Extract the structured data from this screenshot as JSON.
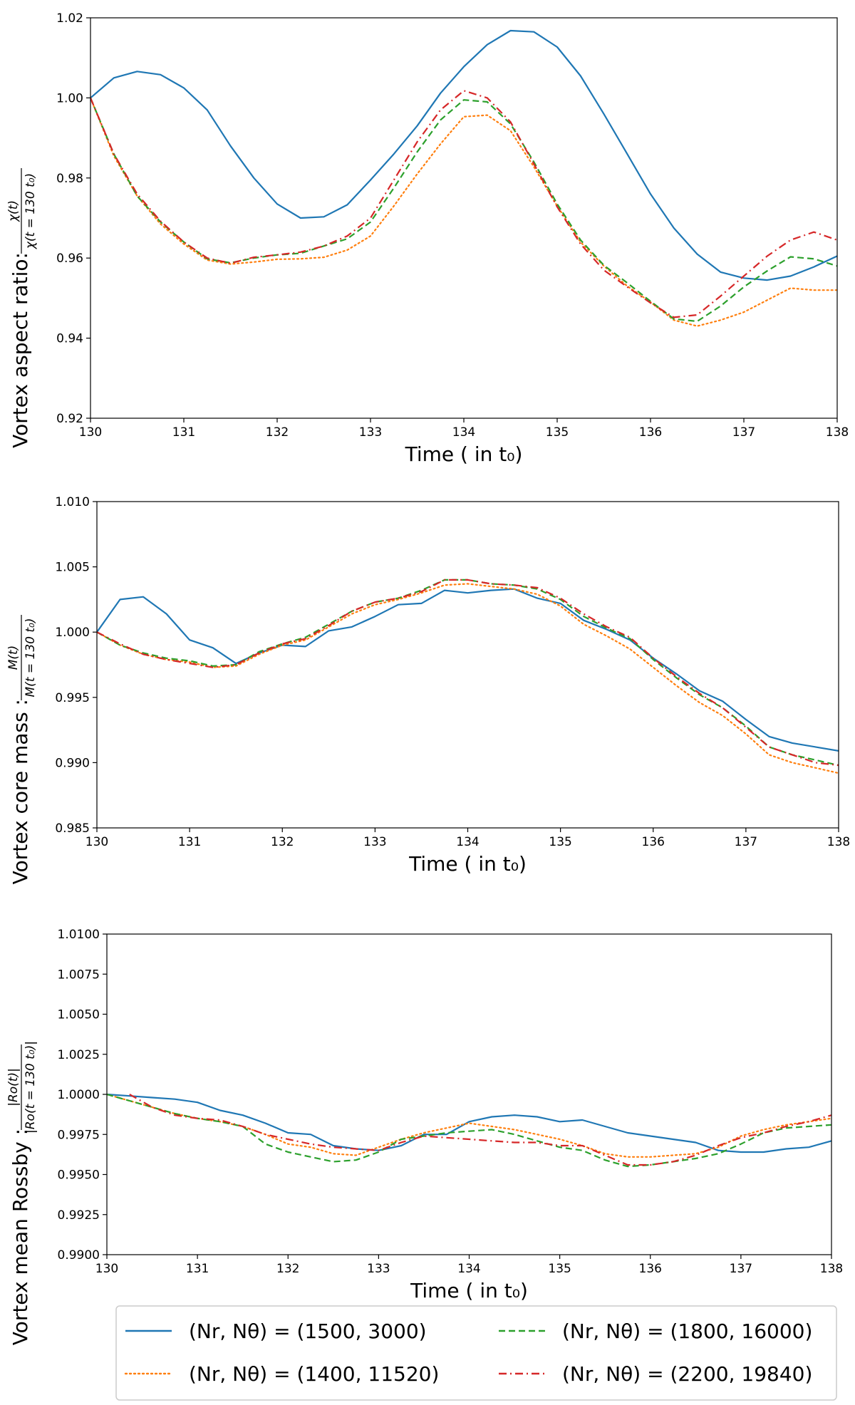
{
  "chart_data": [
    {
      "type": "line",
      "ylabel_prefix": "Vortex aspect ratio: ",
      "ylabel_numerator": "χ(t)",
      "ylabel_denominator": "χ(t = 130 t₀)",
      "xlabel": "Time ( in t₀)",
      "xlim": [
        130,
        138
      ],
      "ylim": [
        0.92,
        1.02
      ],
      "xticks": [
        "130",
        "131",
        "132",
        "133",
        "134",
        "135",
        "136",
        "137",
        "138"
      ],
      "yticks": [
        "0.92",
        "0.94",
        "0.96",
        "0.98",
        "1.00",
        "1.02"
      ],
      "x": [
        130,
        130.25,
        130.5,
        130.75,
        131,
        131.25,
        131.5,
        131.75,
        132,
        132.25,
        132.5,
        132.75,
        133,
        133.25,
        133.5,
        133.75,
        134,
        134.25,
        134.5,
        134.75,
        135,
        135.25,
        135.5,
        135.75,
        136,
        136.25,
        136.5,
        136.75,
        137,
        137.25,
        137.5,
        137.75,
        138
      ],
      "series": [
        {
          "name": "(Nr, Nθ) = (1500, 3000)",
          "values": [
            1.0,
            1.005,
            1.0066,
            1.0058,
            1.0025,
            0.997,
            0.988,
            0.98,
            0.9735,
            0.97,
            0.9703,
            0.9733,
            0.9795,
            0.986,
            0.993,
            1.0012,
            1.0078,
            1.0133,
            1.0168,
            1.0165,
            1.0127,
            1.0055,
            0.996,
            0.986,
            0.976,
            0.9675,
            0.961,
            0.9565,
            0.955,
            0.9545,
            0.9555,
            0.9578,
            0.9605
          ]
        },
        {
          "name": "(Nr, Nθ) = (1400, 11520)",
          "values": [
            1.0,
            0.9855,
            0.9755,
            0.9685,
            0.9635,
            0.9595,
            0.9585,
            0.959,
            0.9597,
            0.9598,
            0.9602,
            0.962,
            0.9655,
            0.973,
            0.981,
            0.9885,
            0.9953,
            0.9957,
            0.9918,
            0.9828,
            0.973,
            0.964,
            0.958,
            0.953,
            0.949,
            0.9445,
            0.943,
            0.9445,
            0.9465,
            0.9495,
            0.9525,
            0.952,
            0.952
          ]
        },
        {
          "name": "(Nr, Nθ) = (1800, 16000)",
          "values": [
            1.0,
            0.986,
            0.9755,
            0.969,
            0.964,
            0.9598,
            0.9588,
            0.96,
            0.9608,
            0.9612,
            0.963,
            0.9648,
            0.969,
            0.9775,
            0.9865,
            0.9945,
            0.9995,
            0.999,
            0.9935,
            0.984,
            0.9735,
            0.9645,
            0.9582,
            0.9538,
            0.9492,
            0.9448,
            0.9442,
            0.948,
            0.9528,
            0.9568,
            0.9603,
            0.9598,
            0.958
          ]
        },
        {
          "name": "(Nr, Nθ) = (2200, 19840)",
          "values": [
            1.0,
            0.986,
            0.976,
            0.9692,
            0.964,
            0.96,
            0.9587,
            0.9602,
            0.9608,
            0.9615,
            0.963,
            0.9655,
            0.97,
            0.9795,
            0.989,
            0.997,
            1.0018,
            1.0,
            0.994,
            0.9835,
            0.9728,
            0.9635,
            0.957,
            0.9528,
            0.9488,
            0.9452,
            0.9458,
            0.9505,
            0.9555,
            0.9605,
            0.9645,
            0.9665,
            0.9645
          ]
        }
      ]
    },
    {
      "type": "line",
      "ylabel_prefix": "Vortex core mass : ",
      "ylabel_numerator": "M(t)",
      "ylabel_denominator": "M(t = 130 t₀)",
      "xlabel": "Time ( in t₀)",
      "xlim": [
        130,
        138
      ],
      "ylim": [
        0.985,
        1.01
      ],
      "xticks": [
        "130",
        "131",
        "132",
        "133",
        "134",
        "135",
        "136",
        "137",
        "138"
      ],
      "yticks": [
        "0.985",
        "0.990",
        "0.995",
        "1.000",
        "1.005",
        "1.010"
      ],
      "x": [
        130,
        130.25,
        130.5,
        130.75,
        131,
        131.25,
        131.5,
        131.75,
        132,
        132.25,
        132.5,
        132.75,
        133,
        133.25,
        133.5,
        133.75,
        134,
        134.25,
        134.5,
        134.75,
        135,
        135.25,
        135.5,
        135.75,
        136,
        136.25,
        136.5,
        136.75,
        137,
        137.25,
        137.5,
        137.75,
        138
      ],
      "series": [
        {
          "name": "(Nr, Nθ) = (1500, 3000)",
          "values": [
            1.0,
            1.0025,
            1.0027,
            1.0014,
            0.9994,
            0.9988,
            0.9976,
            0.9984,
            0.999,
            0.9989,
            1.0001,
            1.0004,
            1.0012,
            1.0021,
            1.0022,
            1.0032,
            1.003,
            1.0032,
            1.0033,
            1.0026,
            1.0022,
            1.0009,
            1.0002,
            0.9994,
            0.998,
            0.9968,
            0.9955,
            0.9947,
            0.9933,
            0.992,
            0.9915,
            0.9912,
            0.9909
          ]
        },
        {
          "name": "(Nr, Nθ) = (1400, 11520)",
          "values": [
            1.0,
            0.999,
            0.9983,
            0.9979,
            0.9977,
            0.9973,
            0.9974,
            0.9983,
            0.999,
            0.9994,
            1.0004,
            1.0014,
            1.0021,
            1.0025,
            1.003,
            1.0036,
            1.0037,
            1.0035,
            1.0033,
            1.0029,
            1.002,
            1.0006,
            0.9997,
            0.9987,
            0.9973,
            0.9959,
            0.9946,
            0.9936,
            0.9922,
            0.9906,
            0.99,
            0.9896,
            0.9892
          ]
        },
        {
          "name": "(Nr, Nθ) = (1800, 16000)",
          "values": [
            1.0,
            0.999,
            0.9984,
            0.998,
            0.9978,
            0.9974,
            0.9975,
            0.9985,
            0.9991,
            0.9996,
            1.0006,
            1.0016,
            1.0023,
            1.0026,
            1.0032,
            1.004,
            1.004,
            1.0037,
            1.0036,
            1.0033,
            1.0025,
            1.0012,
            1.0003,
            0.9995,
            0.9979,
            0.9965,
            0.9952,
            0.9942,
            0.9928,
            0.9912,
            0.9906,
            0.9902,
            0.9898
          ]
        },
        {
          "name": "(Nr, Nθ) = (2200, 19840)",
          "values": [
            1.0,
            0.9991,
            0.9983,
            0.9979,
            0.9976,
            0.9973,
            0.9975,
            0.9984,
            0.9991,
            0.9995,
            1.0005,
            1.0016,
            1.0023,
            1.0026,
            1.0031,
            1.004,
            1.004,
            1.0037,
            1.0036,
            1.0034,
            1.0026,
            1.0014,
            1.0004,
            0.9996,
            0.998,
            0.9966,
            0.9953,
            0.9942,
            0.9927,
            0.9912,
            0.9906,
            0.99,
            0.9898
          ]
        }
      ]
    },
    {
      "type": "line",
      "ylabel_prefix": "Vortex mean Rossby : ",
      "ylabel_numerator": "|Ro(t)|",
      "ylabel_denominator": "|Ro(t = 130 t₀)|",
      "xlabel": "Time ( in t₀)",
      "xlim": [
        130,
        138
      ],
      "ylim": [
        0.99,
        1.01
      ],
      "xticks": [
        "130",
        "131",
        "132",
        "133",
        "134",
        "135",
        "136",
        "137",
        "138"
      ],
      "yticks": [
        "0.9900",
        "0.9925",
        "0.9950",
        "0.9975",
        "1.0000",
        "1.0025",
        "1.0050",
        "1.0075",
        "1.0100"
      ],
      "x": [
        130,
        130.25,
        130.5,
        130.75,
        131,
        131.25,
        131.5,
        131.75,
        132,
        132.25,
        132.5,
        132.75,
        133,
        133.25,
        133.5,
        133.75,
        134,
        134.25,
        134.5,
        134.75,
        135,
        135.25,
        135.5,
        135.75,
        136,
        136.25,
        136.5,
        136.75,
        137,
        137.25,
        137.5,
        137.75,
        138
      ],
      "series": [
        {
          "name": "(Nr, Nθ) = (1500, 3000)",
          "values": [
            1.0,
            0.9999,
            0.9998,
            0.9997,
            0.9995,
            0.999,
            0.9987,
            0.9982,
            0.9976,
            0.9975,
            0.9968,
            0.9966,
            0.9965,
            0.9968,
            0.9975,
            0.9975,
            0.9983,
            0.9986,
            0.9987,
            0.9986,
            0.9983,
            0.9984,
            0.998,
            0.9976,
            0.9974,
            0.9972,
            0.997,
            0.9965,
            0.9964,
            0.9964,
            0.9966,
            0.9967,
            0.9971
          ]
        },
        {
          "name": "(Nr, Nθ) = (1400, 11520)",
          "values": [
            1.0,
            0.9996,
            0.9992,
            0.9988,
            0.9985,
            0.9983,
            0.998,
            0.9975,
            0.9969,
            0.9967,
            0.9963,
            0.9962,
            0.9967,
            0.9972,
            0.9976,
            0.9979,
            0.9982,
            0.998,
            0.9978,
            0.9975,
            0.9972,
            0.9968,
            0.9963,
            0.9961,
            0.9961,
            0.9962,
            0.9963,
            0.9967,
            0.9974,
            0.9978,
            0.9981,
            0.9983,
            0.9985
          ]
        },
        {
          "name": "(Nr, Nθ) = (1800, 16000)",
          "values": [
            1.0,
            0.9996,
            0.9992,
            0.9988,
            0.9985,
            0.9983,
            0.998,
            0.9969,
            0.9964,
            0.9961,
            0.9958,
            0.9959,
            0.9964,
            0.9972,
            0.9974,
            0.9976,
            0.9977,
            0.9978,
            0.9975,
            0.9971,
            0.9967,
            0.9965,
            0.9959,
            0.9955,
            0.9956,
            0.9958,
            0.996,
            0.9963,
            0.9969,
            0.9976,
            0.9979,
            0.998,
            0.9981
          ]
        },
        {
          "name": "(Nr, Nθ) = (2200, 19840)",
          "values": [
            null,
            1.0,
            0.9992,
            0.9987,
            0.9985,
            0.9984,
            0.998,
            0.9975,
            0.9972,
            0.9969,
            0.9967,
            0.9966,
            0.9965,
            0.997,
            0.9974,
            0.9973,
            0.9972,
            0.9971,
            0.997,
            0.997,
            0.9968,
            0.9968,
            0.9962,
            0.9956,
            0.9956,
            0.9958,
            0.9962,
            0.9968,
            0.9973,
            0.9976,
            0.998,
            0.9983,
            0.9987
          ]
        }
      ]
    }
  ],
  "legend": {
    "entries": [
      {
        "label": "(Nr, Nθ) = (1500, 3000)",
        "color": "#1f77b4",
        "style": "solid"
      },
      {
        "label": "(Nr, Nθ) = (1400, 11520)",
        "color": "#ff7f0e",
        "style": "dotted"
      },
      {
        "label": "(Nr, Nθ) = (1800, 16000)",
        "color": "#2ca02c",
        "style": "dashed"
      },
      {
        "label": "(Nr, Nθ) = (2200, 19840)",
        "color": "#d62728",
        "style": "dashdot"
      }
    ]
  }
}
